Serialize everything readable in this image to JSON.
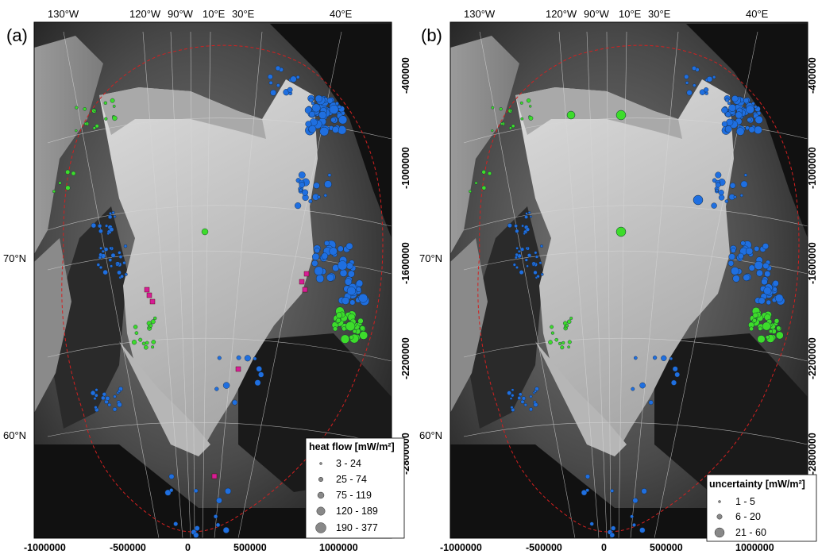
{
  "panels": [
    {
      "label": "(a)",
      "top_lon_labels": [
        "130°W",
        "120°W",
        "90°W",
        "10°E",
        "30°E",
        "40°E"
      ],
      "left_lat_labels": [
        "70°N",
        "60°N"
      ],
      "bottom_labels": [
        "-1000000",
        "-500000",
        "0",
        "500000",
        "1000000"
      ],
      "right_labels": [
        "-400000",
        "-1000000",
        "-1600000",
        "-2200000",
        "-2800000"
      ],
      "legend": {
        "title": "heat flow [mW/m²]",
        "items": [
          "3 - 24",
          "25 - 74",
          "75 - 119",
          "120 - 189",
          "190 - 377"
        ]
      }
    },
    {
      "label": "(b)",
      "top_lon_labels": [
        "130°W",
        "120°W",
        "90°W",
        "10°E",
        "30°E",
        "40°E"
      ],
      "left_lat_labels": [
        "70°N",
        "60°N"
      ],
      "bottom_labels": [
        "-1000000",
        "-500000",
        "0",
        "500000",
        "1000000"
      ],
      "right_labels": [
        "-400000",
        "-1000000",
        "-1600000",
        "-2200000",
        "-2800000"
      ],
      "legend": {
        "title": "uncertainty [mW/m²]",
        "items": [
          "1 - 5",
          "6 - 20",
          "21 - 60"
        ]
      }
    }
  ],
  "colors": {
    "ocean_points": "#1f6fe0",
    "land_points": "#3ddc2b",
    "ice_core_points": "#d61e96",
    "outline": "#d42020",
    "ice_sheet": "#cfcfcf",
    "deep_ocean": "#0f0f0f"
  }
}
